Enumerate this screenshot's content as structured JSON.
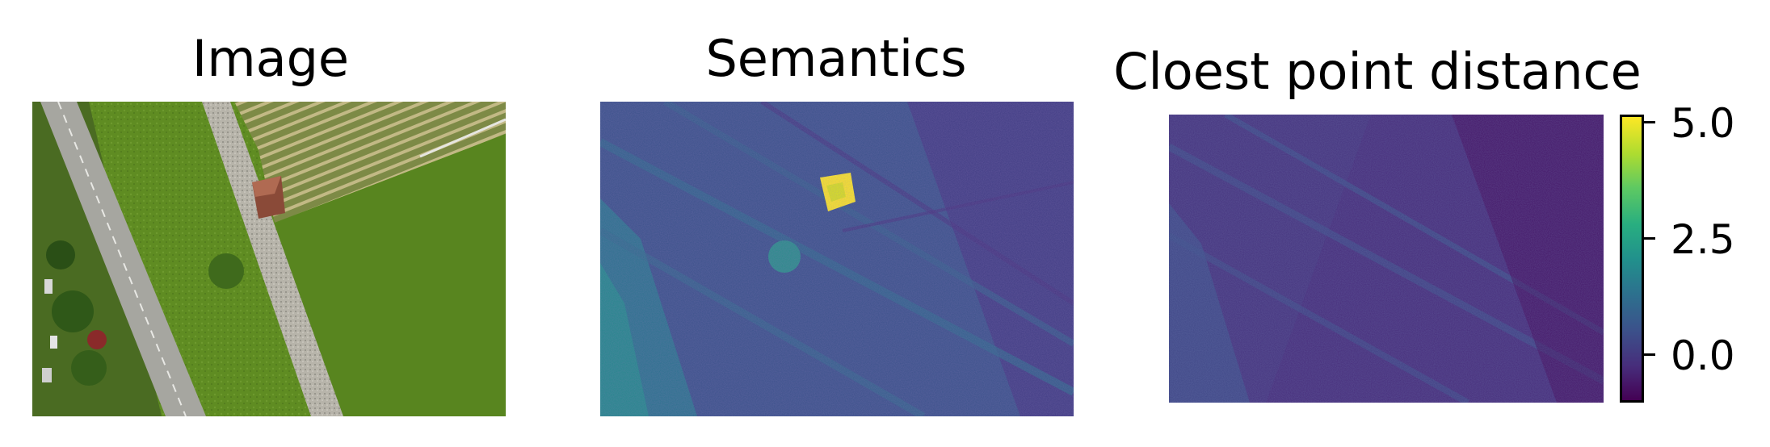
{
  "panels": [
    {
      "title": "Image",
      "content": "aerial photo of fields, a road, a gravel path and a small house"
    },
    {
      "title": "Semantics",
      "content": "viridis-coloured semantic map"
    },
    {
      "title": "Cloest point distance",
      "content": "viridis-coloured distance map"
    }
  ],
  "colorbar": {
    "colormap": "viridis",
    "range": [
      -1,
      5.2
    ],
    "ticks": [
      {
        "value": 5.0,
        "label": "5.0"
      },
      {
        "value": 2.5,
        "label": "2.5"
      },
      {
        "value": 0.0,
        "label": "0.0"
      }
    ]
  },
  "colors": {
    "viridis_low": "#440154",
    "viridis_mid": "#21918c",
    "viridis_high": "#fde725"
  }
}
